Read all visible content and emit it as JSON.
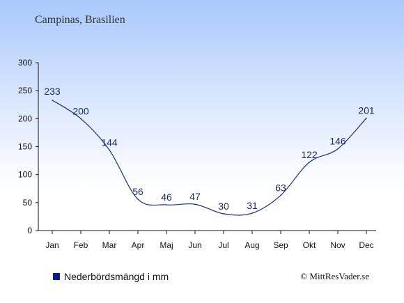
{
  "header": {
    "title": "Campinas, Brasilien"
  },
  "chart_data": {
    "type": "line",
    "title": "Campinas, Brasilien",
    "xlabel": "",
    "ylabel": "",
    "categories": [
      "Jan",
      "Feb",
      "Mar",
      "Apr",
      "Maj",
      "Jun",
      "Jul",
      "Aug",
      "Sep",
      "Okt",
      "Nov",
      "Dec"
    ],
    "series": [
      {
        "name": "Nederbördsmängd i mm",
        "values": [
          233,
          200,
          144,
          56,
          46,
          47,
          30,
          31,
          63,
          122,
          146,
          201
        ]
      }
    ],
    "ylim": [
      0,
      300
    ],
    "yticks": [
      0,
      50,
      100,
      150,
      200,
      250,
      300
    ],
    "grid": false,
    "legend_position": "bottom-left",
    "line_color": "#1a2a8a"
  },
  "legend": {
    "label": "Nederbördsmängd i mm",
    "color": "#0a1a9a"
  },
  "credit": {
    "text": "© MittResVader.se"
  }
}
